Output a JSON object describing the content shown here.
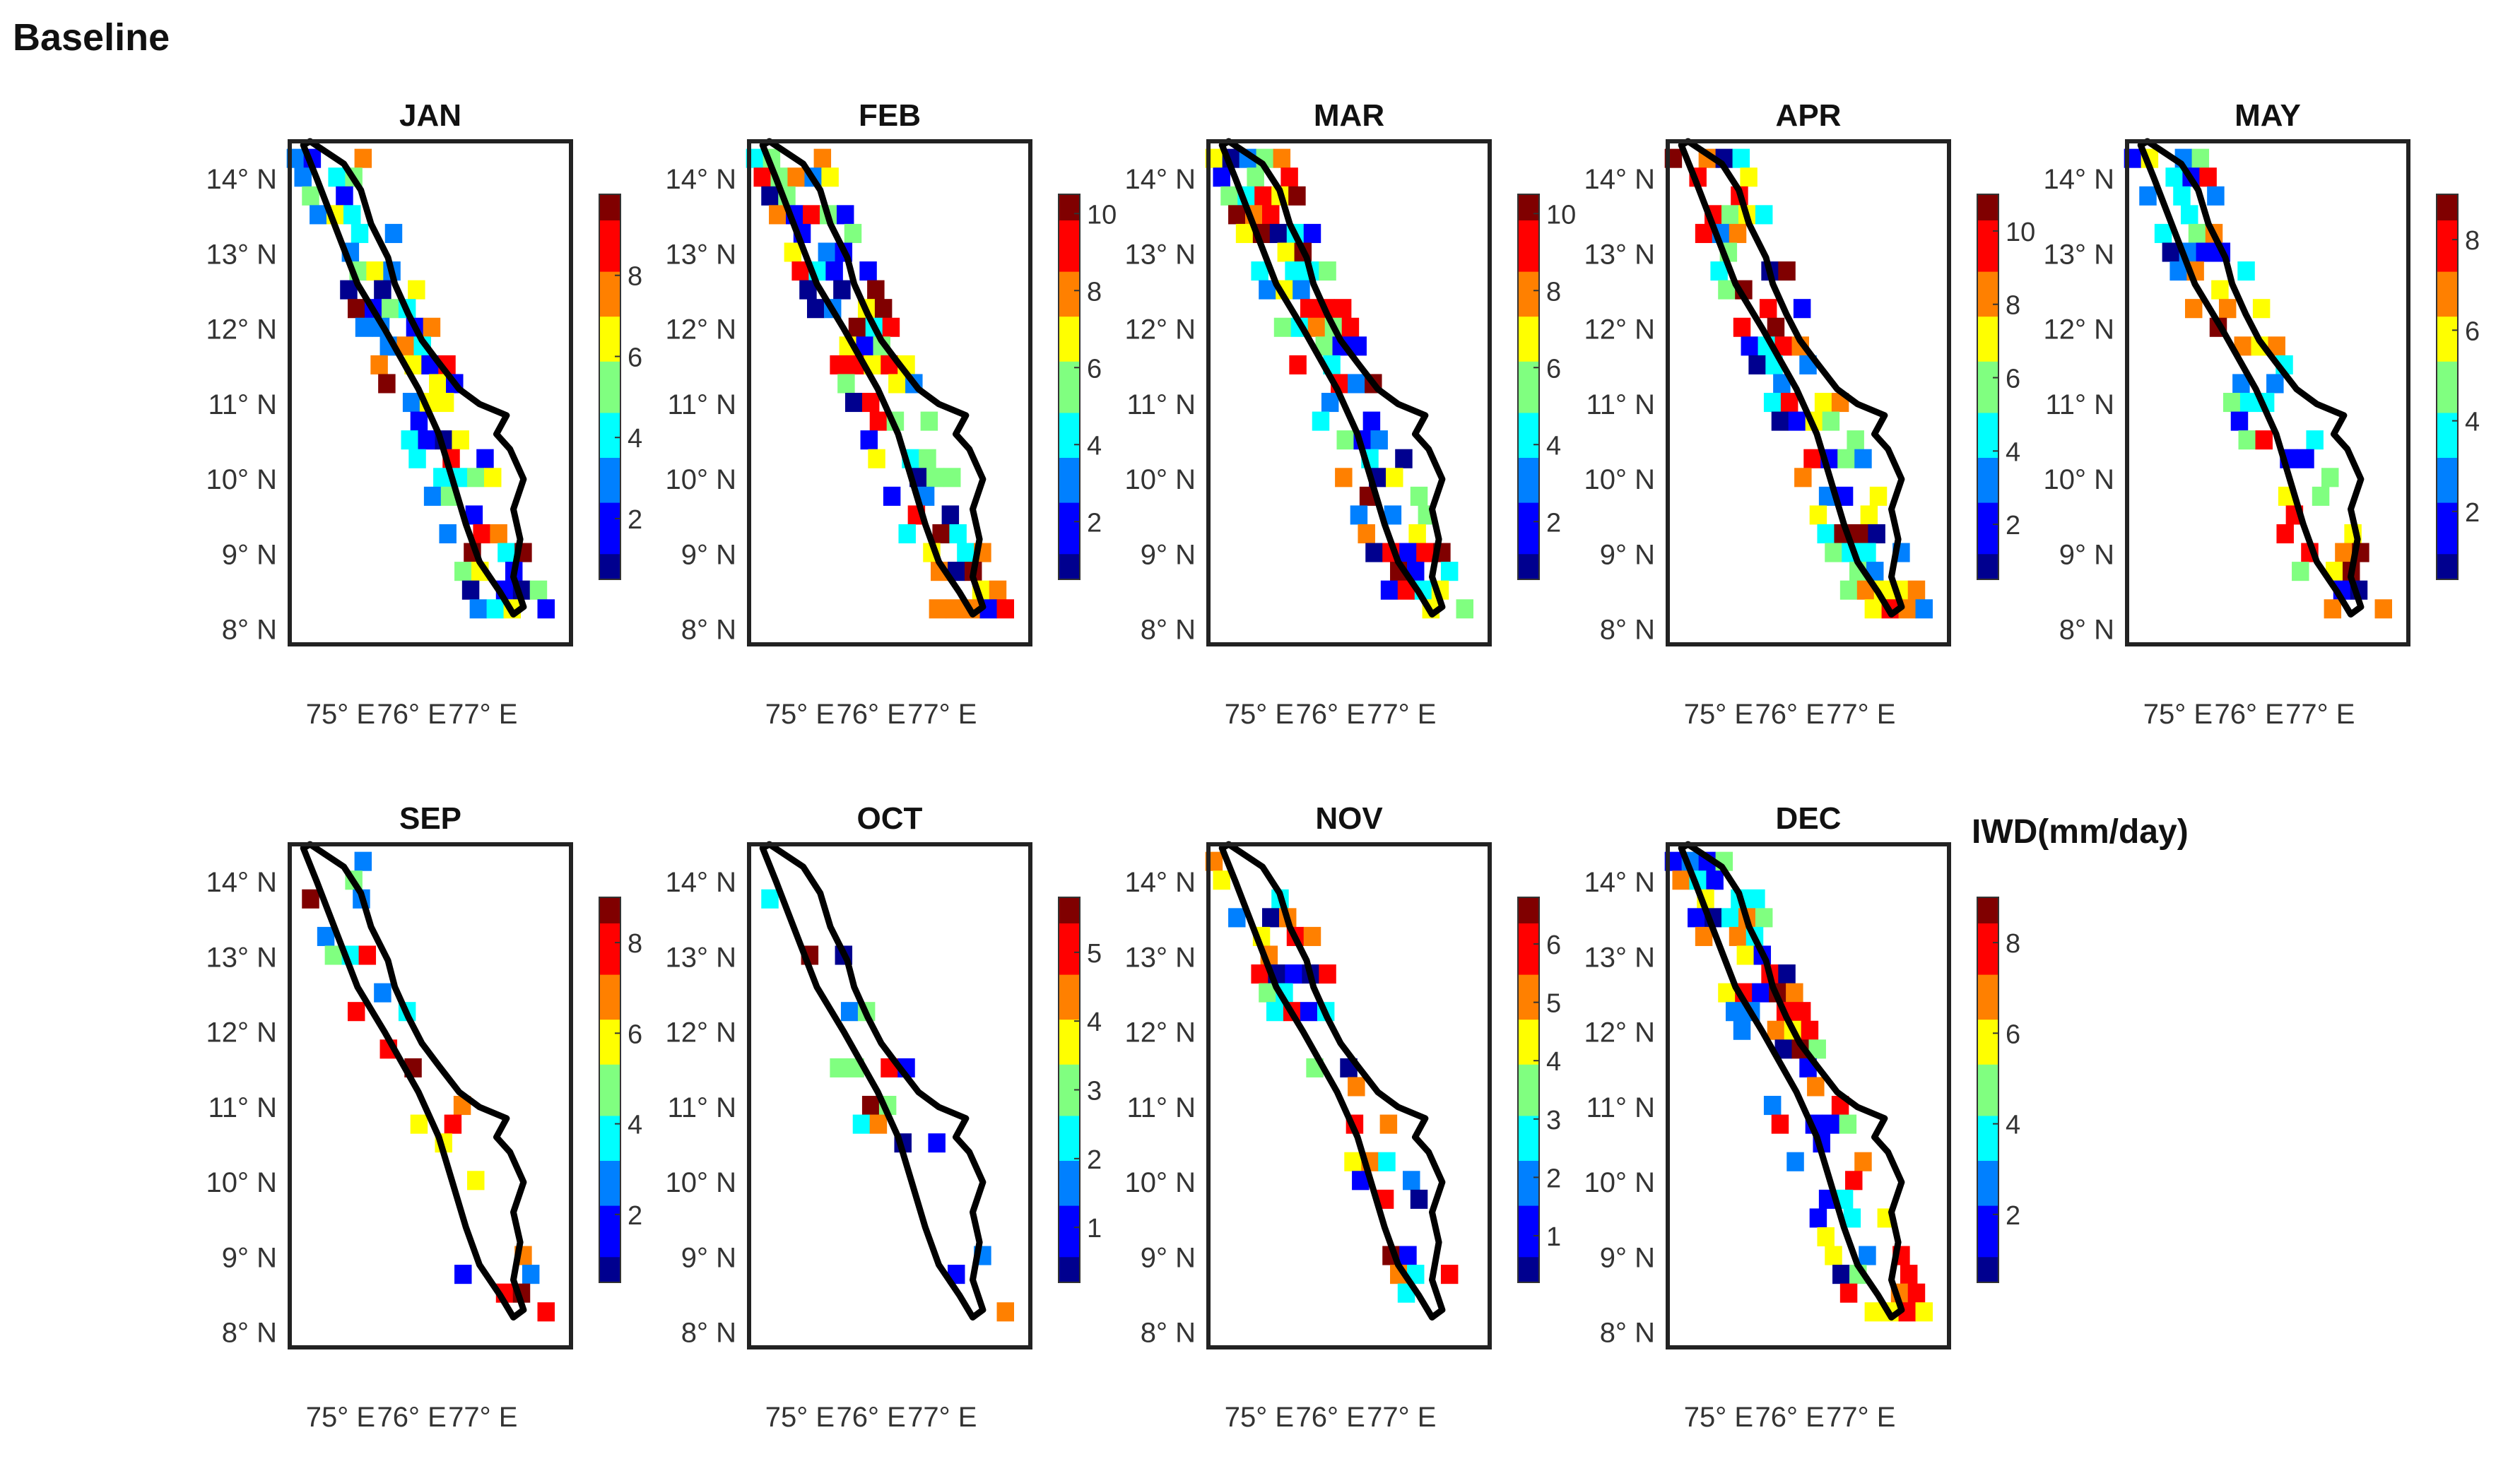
{
  "title": "Baseline",
  "colorbar_unit": "IWD(mm/day)",
  "colormap": [
    "#00008f",
    "#0000ff",
    "#0080ff",
    "#00ffff",
    "#80ff80",
    "#ffff00",
    "#ff8000",
    "#ff0000",
    "#800000"
  ],
  "chart_data": [
    {
      "type": "heatmap",
      "title": "JAN",
      "xticks": [
        "75° E",
        "76° E",
        "77° E"
      ],
      "yticks": [
        "14° N",
        "13° N",
        "12° N",
        "11° N",
        "10° N",
        "9° N",
        "8° N"
      ],
      "colorbar": {
        "ticks": [
          2,
          4,
          6,
          8
        ],
        "min": 0.5,
        "max": 10
      },
      "coverage": 0.6,
      "seed": 11
    },
    {
      "type": "heatmap",
      "title": "FEB",
      "xticks": [
        "75° E",
        "76° E",
        "77° E"
      ],
      "yticks": [
        "14° N",
        "13° N",
        "12° N",
        "11° N",
        "10° N",
        "9° N",
        "8° N"
      ],
      "colorbar": {
        "ticks": [
          2,
          4,
          6,
          8,
          10
        ],
        "min": 0.5,
        "max": 10.5
      },
      "coverage": 0.6,
      "seed": 23
    },
    {
      "type": "heatmap",
      "title": "MAR",
      "xticks": [
        "75° E",
        "76° E",
        "77° E"
      ],
      "yticks": [
        "14° N",
        "13° N",
        "12° N",
        "11° N",
        "10° N",
        "9° N",
        "8° N"
      ],
      "colorbar": {
        "ticks": [
          2,
          4,
          6,
          8,
          10
        ],
        "min": 0.5,
        "max": 10.5
      },
      "coverage": 0.6,
      "seed": 37
    },
    {
      "type": "heatmap",
      "title": "APR",
      "xticks": [
        "75° E",
        "76° E",
        "77° E"
      ],
      "yticks": [
        "14° N",
        "13° N",
        "12° N",
        "11° N",
        "10° N",
        "9° N",
        "8° N"
      ],
      "colorbar": {
        "ticks": [
          2,
          4,
          6,
          8,
          10
        ],
        "min": 0.5,
        "max": 11
      },
      "coverage": 0.5,
      "seed": 41
    },
    {
      "type": "heatmap",
      "title": "MAY",
      "xticks": [
        "75° E",
        "76° E",
        "77° E"
      ],
      "yticks": [
        "14° N",
        "13° N",
        "12° N",
        "11° N",
        "10° N",
        "9° N",
        "8° N"
      ],
      "colorbar": {
        "ticks": [
          2,
          4,
          6,
          8
        ],
        "min": 0.5,
        "max": 9
      },
      "coverage": 0.4,
      "seed": 53
    },
    {
      "type": "heatmap",
      "title": "SEP",
      "xticks": [
        "75° E",
        "76° E",
        "77° E"
      ],
      "yticks": [
        "14° N",
        "13° N",
        "12° N",
        "11° N",
        "10° N",
        "9° N",
        "8° N"
      ],
      "colorbar": {
        "ticks": [
          2,
          4,
          6,
          8
        ],
        "min": 0.5,
        "max": 9
      },
      "coverage": 0.25,
      "seed": 61
    },
    {
      "type": "heatmap",
      "title": "OCT",
      "xticks": [
        "75° E",
        "76° E",
        "77° E"
      ],
      "yticks": [
        "14° N",
        "13° N",
        "12° N",
        "11° N",
        "10° N",
        "9° N",
        "8° N"
      ],
      "colorbar": {
        "ticks": [
          1,
          2,
          3,
          4,
          5
        ],
        "min": 0.2,
        "max": 5.8
      },
      "coverage": 0.12,
      "seed": 71
    },
    {
      "type": "heatmap",
      "title": "NOV",
      "xticks": [
        "75° E",
        "76° E",
        "77° E"
      ],
      "yticks": [
        "14° N",
        "13° N",
        "12° N",
        "11° N",
        "10° N",
        "9° N",
        "8° N"
      ],
      "colorbar": {
        "ticks": [
          1,
          2,
          3,
          4,
          5,
          6
        ],
        "min": 0.2,
        "max": 6.8
      },
      "coverage": 0.35,
      "seed": 83
    },
    {
      "type": "heatmap",
      "title": "DEC",
      "xticks": [
        "75° E",
        "76° E",
        "77° E"
      ],
      "yticks": [
        "14° N",
        "13° N",
        "12° N",
        "11° N",
        "10° N",
        "9° N",
        "8° N"
      ],
      "colorbar": {
        "ticks": [
          2,
          4,
          6,
          8
        ],
        "min": 0.5,
        "max": 9
      },
      "coverage": 0.55,
      "seed": 97
    }
  ]
}
